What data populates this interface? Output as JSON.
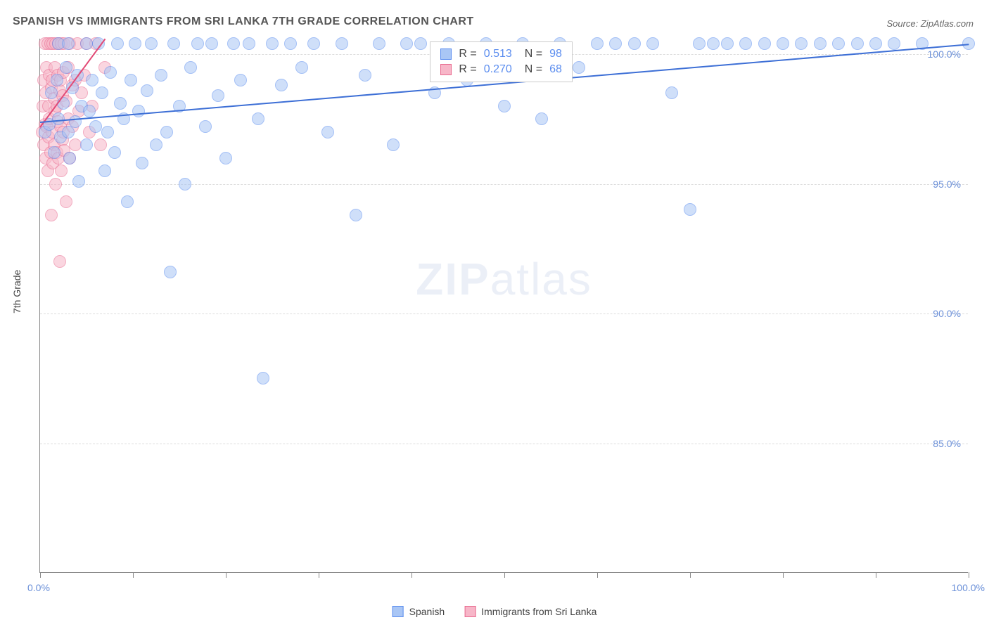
{
  "header": {
    "title": "SPANISH VS IMMIGRANTS FROM SRI LANKA 7TH GRADE CORRELATION CHART",
    "source_prefix": "Source: ",
    "source_name": "ZipAtlas.com"
  },
  "chart": {
    "type": "scatter",
    "ylabel": "7th Grade",
    "xlim": [
      0,
      100
    ],
    "ylim": [
      80,
      100.6
    ],
    "xtick_positions": [
      0,
      10,
      20,
      30,
      40,
      50,
      60,
      70,
      80,
      90,
      100
    ],
    "ytick_labels": [
      {
        "y": 100,
        "label": "100.0%"
      },
      {
        "y": 95,
        "label": "95.0%"
      },
      {
        "y": 90,
        "label": "90.0%"
      },
      {
        "y": 85,
        "label": "85.0%"
      }
    ],
    "xlabel_min": "0.0%",
    "xlabel_max": "100.0%",
    "background_color": "#ffffff",
    "grid_color": "#dddddd",
    "marker_radius": 9,
    "marker_opacity": 0.55,
    "series": [
      {
        "name": "Spanish",
        "color_fill": "#a9c6f5",
        "color_stroke": "#5b8def",
        "trend": {
          "x1": 0,
          "y1": 97.4,
          "x2": 100,
          "y2": 100.4,
          "color": "#3d6fd6",
          "width": 2
        },
        "legend": {
          "r": "0.513",
          "n": "98"
        },
        "points": [
          [
            0.5,
            97.0
          ],
          [
            1,
            97.3
          ],
          [
            1.2,
            98.5
          ],
          [
            1.5,
            96.2
          ],
          [
            1.8,
            99.0
          ],
          [
            2,
            97.5
          ],
          [
            2,
            100.4
          ],
          [
            2.2,
            96.8
          ],
          [
            2.5,
            98.1
          ],
          [
            2.8,
            99.5
          ],
          [
            3,
            97.0
          ],
          [
            3,
            100.4
          ],
          [
            3.2,
            96.0
          ],
          [
            3.5,
            98.7
          ],
          [
            3.8,
            97.4
          ],
          [
            4,
            99.2
          ],
          [
            4.2,
            95.1
          ],
          [
            4.5,
            98.0
          ],
          [
            5,
            100.4
          ],
          [
            5,
            96.5
          ],
          [
            5.3,
            97.8
          ],
          [
            5.6,
            99.0
          ],
          [
            6,
            97.2
          ],
          [
            6.3,
            100.4
          ],
          [
            6.7,
            98.5
          ],
          [
            7,
            95.5
          ],
          [
            7.3,
            97.0
          ],
          [
            7.6,
            99.3
          ],
          [
            8,
            96.2
          ],
          [
            8.3,
            100.4
          ],
          [
            8.6,
            98.1
          ],
          [
            9,
            97.5
          ],
          [
            9.4,
            94.3
          ],
          [
            9.8,
            99.0
          ],
          [
            10.2,
            100.4
          ],
          [
            10.6,
            97.8
          ],
          [
            11,
            95.8
          ],
          [
            11.5,
            98.6
          ],
          [
            12,
            100.4
          ],
          [
            12.5,
            96.5
          ],
          [
            13,
            99.2
          ],
          [
            13.6,
            97.0
          ],
          [
            14,
            91.6
          ],
          [
            14.4,
            100.4
          ],
          [
            15,
            98.0
          ],
          [
            15.6,
            95.0
          ],
          [
            16.2,
            99.5
          ],
          [
            17,
            100.4
          ],
          [
            17.8,
            97.2
          ],
          [
            18.5,
            100.4
          ],
          [
            19.2,
            98.4
          ],
          [
            20,
            96.0
          ],
          [
            20.8,
            100.4
          ],
          [
            21.6,
            99.0
          ],
          [
            22.5,
            100.4
          ],
          [
            23.5,
            97.5
          ],
          [
            24,
            87.5
          ],
          [
            25,
            100.4
          ],
          [
            26,
            98.8
          ],
          [
            27,
            100.4
          ],
          [
            28.2,
            99.5
          ],
          [
            29.5,
            100.4
          ],
          [
            31,
            97.0
          ],
          [
            32.5,
            100.4
          ],
          [
            34,
            93.8
          ],
          [
            35,
            99.2
          ],
          [
            36.5,
            100.4
          ],
          [
            38,
            96.5
          ],
          [
            39.5,
            100.4
          ],
          [
            41,
            100.4
          ],
          [
            42.5,
            98.5
          ],
          [
            44,
            100.4
          ],
          [
            46,
            99.0
          ],
          [
            48,
            100.4
          ],
          [
            50,
            98.0
          ],
          [
            52,
            100.4
          ],
          [
            54,
            97.5
          ],
          [
            56,
            100.4
          ],
          [
            58,
            99.5
          ],
          [
            60,
            100.4
          ],
          [
            62,
            100.4
          ],
          [
            64,
            100.4
          ],
          [
            66,
            100.4
          ],
          [
            68,
            98.5
          ],
          [
            70,
            94.0
          ],
          [
            71,
            100.4
          ],
          [
            72.5,
            100.4
          ],
          [
            74,
            100.4
          ],
          [
            76,
            100.4
          ],
          [
            78,
            100.4
          ],
          [
            80,
            100.4
          ],
          [
            82,
            100.4
          ],
          [
            84,
            100.4
          ],
          [
            86,
            100.4
          ],
          [
            88,
            100.4
          ],
          [
            90,
            100.4
          ],
          [
            92,
            100.4
          ],
          [
            95,
            100.4
          ],
          [
            100,
            100.4
          ]
        ]
      },
      {
        "name": "Immigants from Sri Lanka",
        "legend_label": "Immigrants from Sri Lanka",
        "color_fill": "#f7b6c8",
        "color_stroke": "#e86a8f",
        "trend": {
          "x1": 0,
          "y1": 97.2,
          "x2": 7,
          "y2": 100.6,
          "color": "#e24a76",
          "width": 2
        },
        "legend": {
          "r": "0.270",
          "n": "68"
        },
        "points": [
          [
            0.2,
            97.0
          ],
          [
            0.3,
            98.0
          ],
          [
            0.4,
            96.5
          ],
          [
            0.4,
            99.0
          ],
          [
            0.5,
            97.3
          ],
          [
            0.5,
            100.4
          ],
          [
            0.6,
            98.5
          ],
          [
            0.6,
            96.0
          ],
          [
            0.7,
            99.5
          ],
          [
            0.7,
            97.2
          ],
          [
            0.8,
            100.4
          ],
          [
            0.8,
            95.5
          ],
          [
            0.9,
            98.0
          ],
          [
            0.9,
            96.8
          ],
          [
            1.0,
            99.2
          ],
          [
            1.0,
            97.5
          ],
          [
            1.1,
            100.4
          ],
          [
            1.1,
            96.2
          ],
          [
            1.2,
            98.7
          ],
          [
            1.2,
            93.8
          ],
          [
            1.3,
            99.0
          ],
          [
            1.3,
            97.0
          ],
          [
            1.4,
            100.4
          ],
          [
            1.4,
            95.8
          ],
          [
            1.5,
            98.3
          ],
          [
            1.5,
            96.5
          ],
          [
            1.6,
            99.5
          ],
          [
            1.6,
            97.8
          ],
          [
            1.7,
            100.4
          ],
          [
            1.7,
            95.0
          ],
          [
            1.8,
            98.0
          ],
          [
            1.8,
            96.2
          ],
          [
            1.9,
            99.2
          ],
          [
            1.9,
            97.4
          ],
          [
            2.0,
            100.4
          ],
          [
            2.0,
            96.0
          ],
          [
            2.1,
            98.6
          ],
          [
            2.1,
            92.0
          ],
          [
            2.2,
            99.0
          ],
          [
            2.2,
            97.2
          ],
          [
            2.3,
            100.4
          ],
          [
            2.3,
            95.5
          ],
          [
            2.4,
            98.4
          ],
          [
            2.4,
            96.7
          ],
          [
            2.5,
            99.3
          ],
          [
            2.5,
            97.0
          ],
          [
            2.6,
            100.4
          ],
          [
            2.6,
            96.3
          ],
          [
            2.8,
            98.2
          ],
          [
            2.8,
            94.3
          ],
          [
            3.0,
            99.5
          ],
          [
            3.0,
            97.5
          ],
          [
            3.2,
            100.4
          ],
          [
            3.2,
            96.0
          ],
          [
            3.5,
            98.8
          ],
          [
            3.5,
            97.2
          ],
          [
            3.8,
            99.0
          ],
          [
            3.8,
            96.5
          ],
          [
            4.0,
            100.4
          ],
          [
            4.2,
            97.8
          ],
          [
            4.5,
            98.5
          ],
          [
            4.8,
            99.2
          ],
          [
            5.0,
            100.4
          ],
          [
            5.3,
            97.0
          ],
          [
            5.6,
            98.0
          ],
          [
            6.0,
            100.4
          ],
          [
            6.5,
            96.5
          ],
          [
            7.0,
            99.5
          ]
        ]
      }
    ]
  },
  "legend_top": {
    "r_label": "R =",
    "n_label": "N ="
  },
  "legend_bottom": {
    "series1": "Spanish",
    "series2": "Immigrants from Sri Lanka"
  },
  "watermark": {
    "bold": "ZIP",
    "rest": "atlas"
  }
}
